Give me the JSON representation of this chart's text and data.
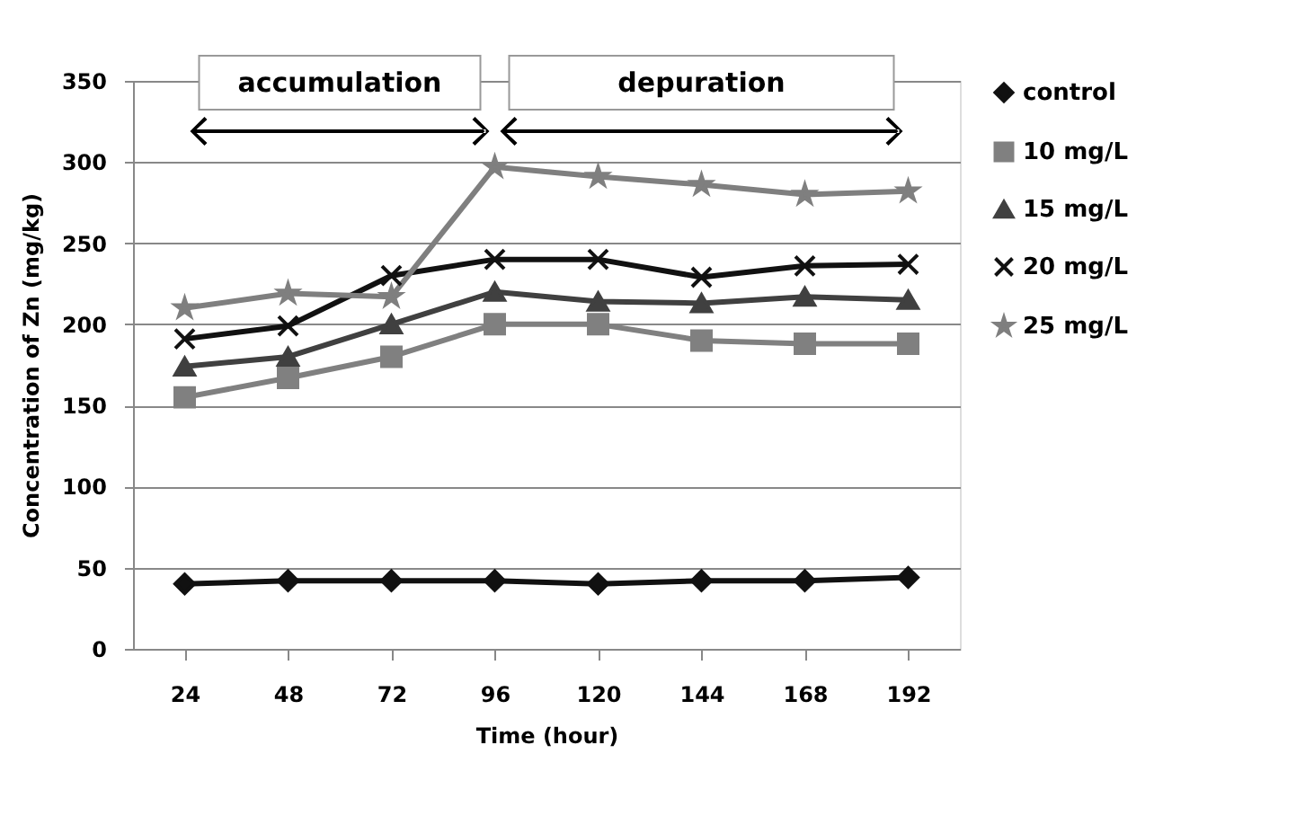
{
  "chart_data": {
    "type": "line",
    "xlabel": "Time (hour)",
    "ylabel": "Concentration of Zn  (mg/kg)",
    "categories": [
      "24",
      "48",
      "72",
      "96",
      "120",
      "144",
      "168",
      "192"
    ],
    "ylim": [
      0,
      350
    ],
    "yticks": [
      0,
      50,
      100,
      150,
      200,
      250,
      300,
      350
    ],
    "grid": "y",
    "legend": "right",
    "line_style": "solid",
    "annotations": [
      "accumulation",
      "depuration"
    ],
    "series": [
      {
        "name": "control",
        "color": "#111111",
        "marker": "diamond",
        "values": [
          40,
          42,
          42,
          42,
          40,
          42,
          42,
          44
        ]
      },
      {
        "name": "10 mg/L",
        "color": "#808080",
        "marker": "square",
        "values": [
          155,
          167,
          180,
          200,
          200,
          190,
          188,
          188
        ]
      },
      {
        "name": "15 mg/L",
        "color": "#404040",
        "marker": "triangle",
        "values": [
          174,
          180,
          200,
          220,
          214,
          213,
          217,
          215
        ]
      },
      {
        "name": "20 mg/L",
        "color": "#111111",
        "marker": "cross",
        "values": [
          191,
          199,
          230,
          240,
          240,
          229,
          236,
          237
        ]
      },
      {
        "name": "25 mg/L",
        "color": "#7f7f7f",
        "marker": "star",
        "values": [
          210,
          219,
          217,
          297,
          291,
          286,
          280,
          282
        ]
      }
    ]
  }
}
